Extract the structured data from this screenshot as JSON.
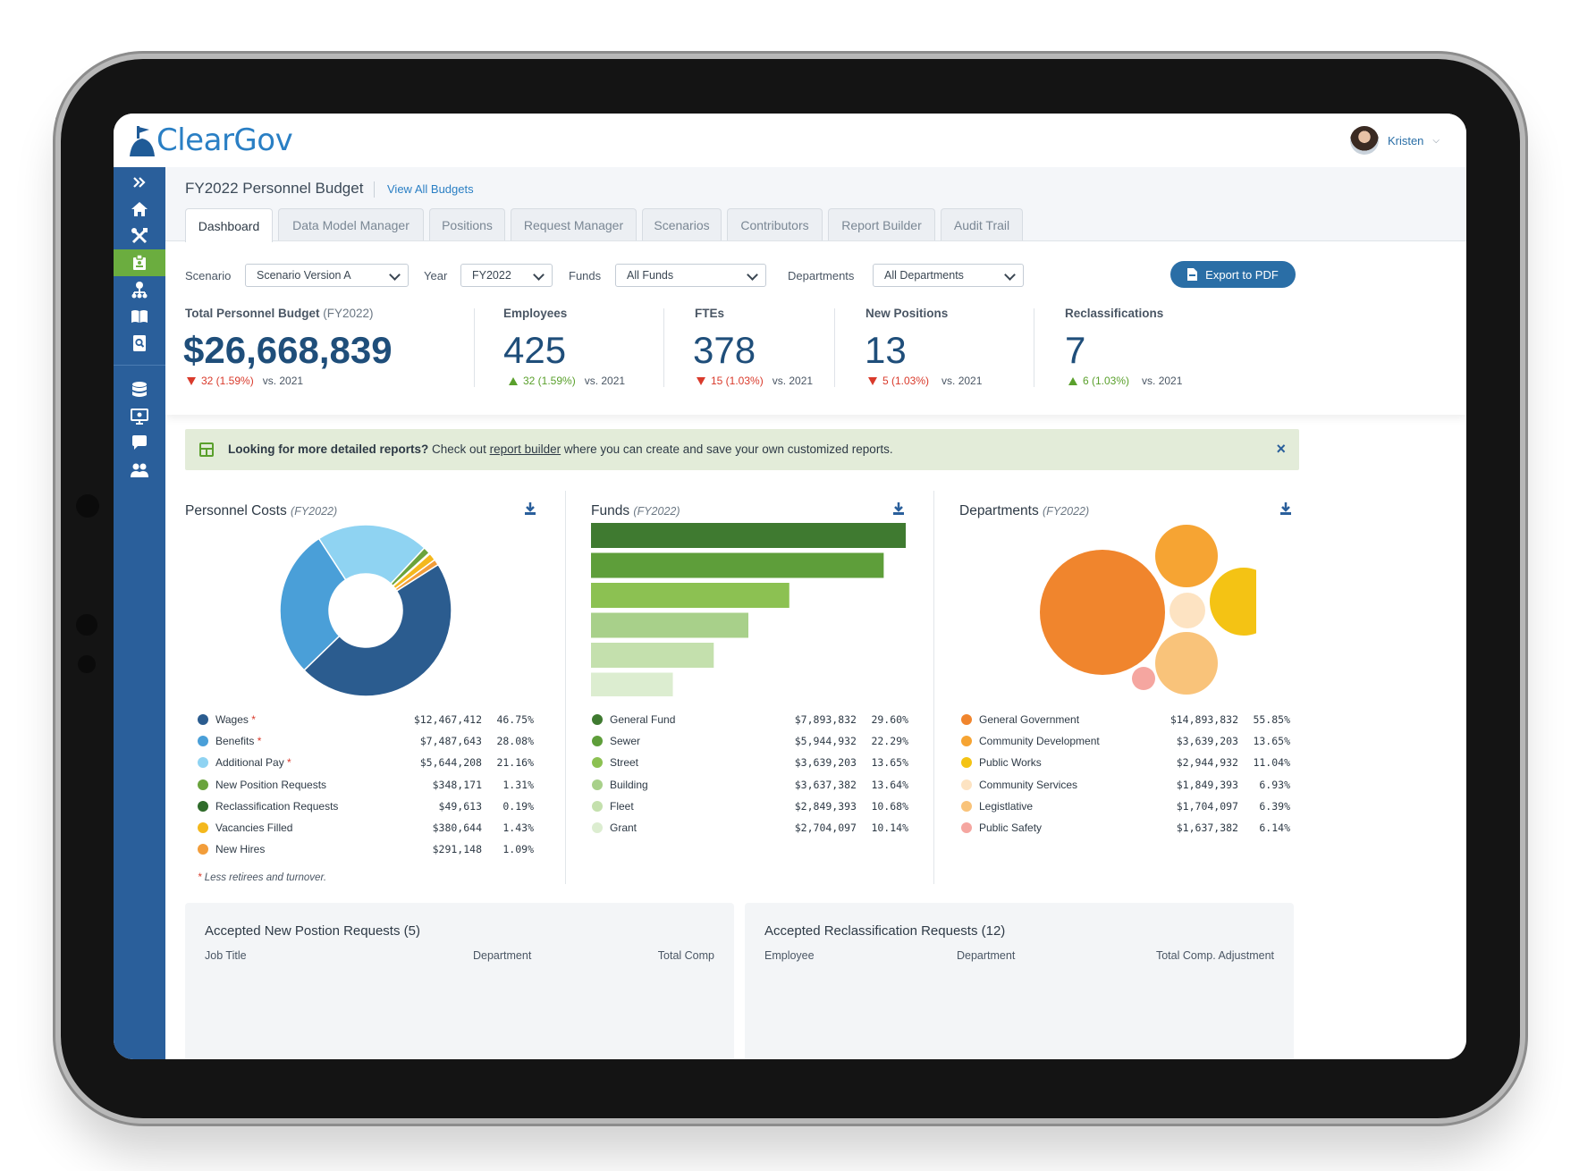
{
  "app": {
    "logo": "ClearGov",
    "user_name": "Kristen"
  },
  "header": {
    "title": "FY2022 Personnel Budget",
    "view_all": "View All Budgets"
  },
  "tabs": [
    {
      "label": "Dashboard",
      "active": true
    },
    {
      "label": "Data Model Manager"
    },
    {
      "label": "Positions"
    },
    {
      "label": "Request Manager"
    },
    {
      "label": "Scenarios"
    },
    {
      "label": "Contributors"
    },
    {
      "label": "Report Builder"
    },
    {
      "label": "Audit Trail"
    }
  ],
  "filters": {
    "scenario_label": "Scenario",
    "scenario_value": "Scenario Version A",
    "year_label": "Year",
    "year_value": "FY2022",
    "funds_label": "Funds",
    "funds_value": "All Funds",
    "departments_label": "Departments",
    "departments_value": "All Departments",
    "export_label": "Export to PDF"
  },
  "kpis": [
    {
      "label": "Total Personnel Budget",
      "year": "(FY2022)",
      "value": "$26,668,839",
      "delta": "32 (1.59%)",
      "direction": "down",
      "vs": "vs. 2021"
    },
    {
      "label": "Employees",
      "value": "425",
      "delta": "32 (1.59%)",
      "direction": "up",
      "vs": "vs. 2021"
    },
    {
      "label": "FTEs",
      "value": "378",
      "delta": "15 (1.03%)",
      "direction": "down",
      "vs": "vs. 2021"
    },
    {
      "label": "New Positions",
      "value": "13",
      "delta": "5 (1.03%)",
      "direction": "down",
      "vs": "vs. 2021"
    },
    {
      "label": "Reclassifications",
      "value": "7",
      "delta": "6 (1.03%)",
      "direction": "up",
      "vs": "vs. 2021"
    }
  ],
  "banner": {
    "bold": "Looking for more detailed reports?",
    "pre": " Check out ",
    "link": "report builder",
    "post": " where you can create and save your own customized reports.",
    "close": "×"
  },
  "panels": {
    "personnel": {
      "title": "Personnel Costs",
      "year": "(FY2022)",
      "footnote": "Less retirees and turnover.",
      "footnote_mark": "*"
    },
    "funds": {
      "title": "Funds",
      "year": "(FY2022)"
    },
    "departments": {
      "title": "Departments",
      "year": "(FY2022)"
    }
  },
  "chart_data": [
    {
      "type": "pie",
      "title": "Personnel Costs (FY2022)",
      "variant": "donut",
      "series": [
        {
          "name": "Wages",
          "asterisk": true,
          "value": 12467412,
          "display": "$12,467,412",
          "pct": "46.75%",
          "color": "#2b5c8f"
        },
        {
          "name": "Benefits",
          "asterisk": true,
          "value": 7487643,
          "display": "$7,487,643",
          "pct": "28.08%",
          "color": "#4a9fd8"
        },
        {
          "name": "Additional Pay",
          "asterisk": true,
          "value": 5644208,
          "display": "$5,644,208",
          "pct": "21.16%",
          "color": "#8fd3f2"
        },
        {
          "name": "New Position Requests",
          "value": 348171,
          "display": "$348,171",
          "pct": "1.31%",
          "color": "#6aa33c"
        },
        {
          "name": "Reclassification Requests",
          "value": 49613,
          "display": "$49,613",
          "pct": "0.19%",
          "color": "#2f6b2a"
        },
        {
          "name": "Vacancies Filled",
          "value": 380644,
          "display": "$380,644",
          "pct": "1.43%",
          "color": "#f4b81d"
        },
        {
          "name": "New Hires",
          "value": 291148,
          "display": "$291,148",
          "pct": "1.09%",
          "color": "#f29d3a"
        }
      ]
    },
    {
      "type": "bar",
      "title": "Funds (FY2022)",
      "orientation": "horizontal",
      "categories": [
        "General Fund",
        "Sewer",
        "Street",
        "Building",
        "Fleet",
        "Grant"
      ],
      "values": [
        7893832,
        5944932,
        3639203,
        3637382,
        2849393,
        2704097
      ],
      "bar_lengths_relative": [
        1.0,
        0.93,
        0.63,
        0.5,
        0.39,
        0.26
      ],
      "display": [
        "$7,893,832",
        "$5,944,932",
        "$3,639,203",
        "$3,637,382",
        "$2,849,393",
        "$2,704,097"
      ],
      "pct": [
        "29.60%",
        "22.29%",
        "13.65%",
        "13.64%",
        "10.68%",
        "10.14%"
      ],
      "colors": [
        "#3f7a30",
        "#5e9e3a",
        "#8cc152",
        "#a8d08a",
        "#c4e0ad",
        "#dcedd0"
      ]
    },
    {
      "type": "bubble",
      "title": "Departments (FY2022)",
      "categories": [
        "General Government",
        "Community Development",
        "Public Works",
        "Community Services",
        "Legistlative",
        "Public Safety"
      ],
      "values": [
        14893832,
        3639203,
        2944932,
        1849393,
        1704097,
        1637382
      ],
      "display": [
        "$14,893,832",
        "$3,639,203",
        "$2,944,932",
        "$1,849,393",
        "$1,704,097",
        "$1,637,382"
      ],
      "pct": [
        "55.85%",
        "13.65%",
        "11.04%",
        "6.93%",
        "6.39%",
        "6.14%"
      ],
      "colors": [
        "#f0852d",
        "#f6a433",
        "#f4c314",
        "#fde3c2",
        "#f9c37a",
        "#f5a6a0"
      ]
    }
  ],
  "cards": [
    {
      "title": "Accepted New Postion Requests (5)",
      "cols": [
        "Job Title",
        "Department",
        "Total Comp"
      ]
    },
    {
      "title": "Accepted Reclassification Requests (12)",
      "cols": [
        "Employee",
        "Department",
        "Total Comp. Adjustment"
      ]
    }
  ]
}
